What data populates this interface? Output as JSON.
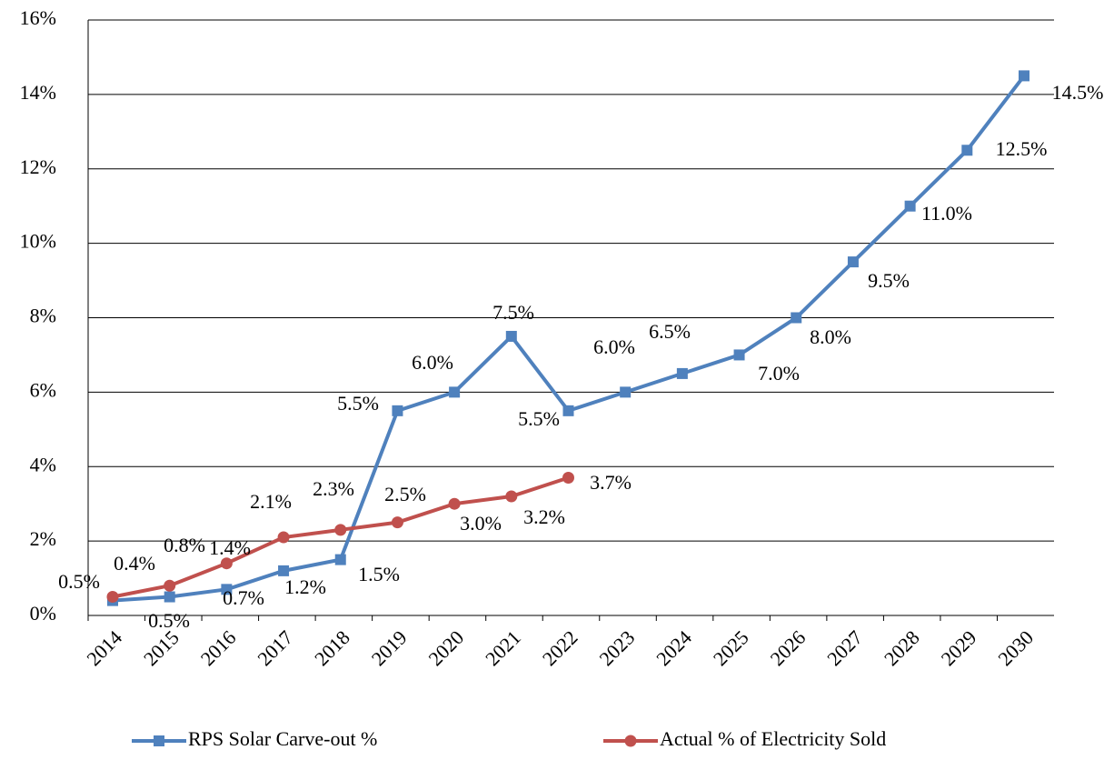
{
  "chart_data": {
    "type": "line",
    "categories": [
      "2014",
      "2015",
      "2016",
      "2017",
      "2018",
      "2019",
      "2020",
      "2021",
      "2022",
      "2023",
      "2024",
      "2025",
      "2026",
      "2027",
      "2028",
      "2029",
      "2030"
    ],
    "series": [
      {
        "name": "RPS Solar Carve-out %",
        "color": "#4f81bd",
        "marker": "square",
        "values": [
          0.4,
          0.5,
          0.7,
          1.2,
          1.5,
          5.5,
          6.0,
          7.5,
          5.5,
          6.0,
          6.5,
          7.0,
          8.0,
          9.5,
          11.0,
          12.5,
          14.5
        ],
        "value_labels": [
          "0.4%",
          "0.5%",
          "0.7%",
          "1.2%",
          "1.5%",
          "5.5%",
          "6.0%",
          "7.5%",
          "5.5%",
          "6.0%",
          "6.5%",
          "7.0%",
          "8.0%",
          "9.5%",
          "11.0%",
          "12.5%",
          "14.5%"
        ]
      },
      {
        "name": "Actual % of Electricity Sold",
        "color": "#c0504d",
        "marker": "circle",
        "values": [
          0.5,
          0.8,
          1.4,
          2.1,
          2.3,
          2.5,
          3.0,
          3.2,
          3.7,
          null,
          null,
          null,
          null,
          null,
          null,
          null,
          null
        ],
        "value_labels": [
          "0.5%",
          "0.8%",
          "1.4%",
          "2.1%",
          "2.3%",
          "2.5%",
          "3.0%",
          "3.2%",
          "3.7%",
          null,
          null,
          null,
          null,
          null,
          null,
          null,
          null
        ]
      }
    ],
    "ylim": [
      0,
      16
    ],
    "yticks": [
      {
        "value": 0,
        "label": "0%"
      },
      {
        "value": 2,
        "label": "2%"
      },
      {
        "value": 4,
        "label": "4%"
      },
      {
        "value": 6,
        "label": "6%"
      },
      {
        "value": 8,
        "label": "8%"
      },
      {
        "value": 10,
        "label": "10%"
      },
      {
        "value": 12,
        "label": "12%"
      },
      {
        "value": 14,
        "label": "14%"
      },
      {
        "value": 16,
        "label": "16%"
      }
    ],
    "grid": true,
    "legend": "bottom"
  }
}
